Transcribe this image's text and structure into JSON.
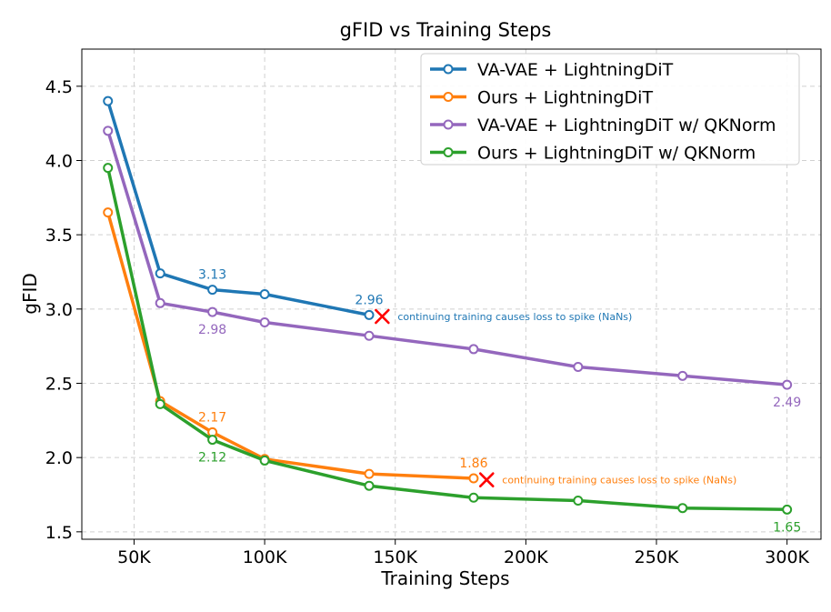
{
  "chart_data": {
    "type": "line",
    "title": "gFID vs Training Steps",
    "xlabel": "Training Steps",
    "ylabel": "gFID",
    "xlim": [
      30000,
      313000
    ],
    "ylim": [
      1.45,
      4.75
    ],
    "xticks": [
      50000,
      100000,
      150000,
      200000,
      250000,
      300000
    ],
    "xtick_labels": [
      "50K",
      "100K",
      "150K",
      "200K",
      "250K",
      "300K"
    ],
    "yticks": [
      1.5,
      2.0,
      2.5,
      3.0,
      3.5,
      4.0,
      4.5
    ],
    "ytick_labels": [
      "1.5",
      "2.0",
      "2.5",
      "3.0",
      "3.5",
      "4.0",
      "4.5"
    ],
    "grid": true,
    "legend_position": "top-right",
    "series": [
      {
        "name": "VA-VAE + LightningDiT",
        "color": "#1f77b4",
        "x": [
          40000,
          60000,
          80000,
          100000,
          140000
        ],
        "y": [
          4.4,
          3.24,
          3.13,
          3.1,
          2.96
        ]
      },
      {
        "name": "Ours + LightningDiT",
        "color": "#ff7f0e",
        "x": [
          40000,
          60000,
          80000,
          100000,
          140000,
          180000
        ],
        "y": [
          3.65,
          2.38,
          2.17,
          1.99,
          1.89,
          1.86
        ]
      },
      {
        "name": "VA-VAE + LightningDiT w/ QKNorm",
        "color": "#9467bd",
        "x": [
          40000,
          60000,
          80000,
          100000,
          140000,
          180000,
          220000,
          260000,
          300000
        ],
        "y": [
          4.2,
          3.04,
          2.98,
          2.91,
          2.82,
          2.73,
          2.61,
          2.55,
          2.49
        ]
      },
      {
        "name": "Ours + LightningDiT w/ QKNorm",
        "color": "#2ca02c",
        "x": [
          40000,
          60000,
          80000,
          100000,
          140000,
          180000,
          220000,
          260000,
          300000
        ],
        "y": [
          3.95,
          2.36,
          2.12,
          1.98,
          1.81,
          1.73,
          1.71,
          1.66,
          1.65
        ]
      }
    ],
    "data_labels": [
      {
        "series": 0,
        "x": 80000,
        "y": 3.13,
        "text": "3.13",
        "pos": "above"
      },
      {
        "series": 0,
        "x": 140000,
        "y": 2.96,
        "text": "2.96",
        "pos": "above"
      },
      {
        "series": 2,
        "x": 80000,
        "y": 2.98,
        "text": "2.98",
        "pos": "below"
      },
      {
        "series": 2,
        "x": 300000,
        "y": 2.49,
        "text": "2.49",
        "pos": "below"
      },
      {
        "series": 1,
        "x": 80000,
        "y": 2.17,
        "text": "2.17",
        "pos": "above"
      },
      {
        "series": 1,
        "x": 180000,
        "y": 1.86,
        "text": "1.86",
        "pos": "above"
      },
      {
        "series": 3,
        "x": 80000,
        "y": 2.12,
        "text": "2.12",
        "pos": "below"
      },
      {
        "series": 3,
        "x": 300000,
        "y": 1.65,
        "text": "1.65",
        "pos": "below"
      }
    ],
    "failure_markers": [
      {
        "series": 0,
        "x": 145000,
        "y": 2.95,
        "symbol": "X",
        "color": "#ff0000",
        "note": "continuing training causes loss to spike (NaNs)"
      },
      {
        "series": 1,
        "x": 185000,
        "y": 1.85,
        "symbol": "X",
        "color": "#ff0000",
        "note": "continuing training causes loss to spike (NaNs)"
      }
    ]
  }
}
